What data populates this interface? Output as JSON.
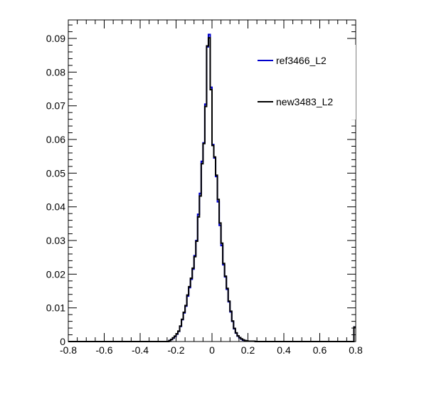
{
  "chart_data": {
    "type": "histogram",
    "title": "",
    "xlabel": "",
    "ylabel": "",
    "xlim": [
      -0.8,
      0.8
    ],
    "ylim": [
      0,
      0.0955
    ],
    "grid": false,
    "legend_placement": "top-right",
    "x_tick_labels": [
      "-0.8",
      "-0.6",
      "-0.4",
      "-0.2",
      "0",
      "0.2",
      "0.4",
      "0.6",
      "0.8"
    ],
    "x_ticks": [
      -0.8,
      -0.6,
      -0.4,
      -0.2,
      0,
      0.2,
      0.4,
      0.6,
      0.8
    ],
    "y_tick_labels": [
      "0",
      "0.01",
      "0.02",
      "0.03",
      "0.04",
      "0.05",
      "0.06",
      "0.07",
      "0.08",
      "0.09"
    ],
    "y_ticks": [
      0,
      0.01,
      0.02,
      0.03,
      0.04,
      0.05,
      0.06,
      0.07,
      0.08,
      0.09
    ],
    "bin_edges_x": [
      -0.24,
      -0.23,
      -0.22,
      -0.21,
      -0.2,
      -0.19,
      -0.18,
      -0.17,
      -0.16,
      -0.15,
      -0.14,
      -0.13,
      -0.12,
      -0.11,
      -0.1,
      -0.09,
      -0.08,
      -0.07,
      -0.06,
      -0.05,
      -0.04,
      -0.03,
      -0.02,
      -0.01,
      0,
      0.01,
      0.02,
      0.03,
      0.04,
      0.05,
      0.06,
      0.07,
      0.08,
      0.09,
      0.1,
      0.11,
      0.12,
      0.13,
      0.14,
      0.15,
      0.16,
      0.17,
      0.18,
      0.19,
      0.2,
      0.21,
      0.22,
      0.23,
      0.24
    ],
    "series": [
      {
        "name": "ref3466_L2",
        "color": "#0000cc",
        "values": [
          0.0003,
          0.0006,
          0.001,
          0.0015,
          0.0022,
          0.003,
          0.0045,
          0.0065,
          0.0085,
          0.0105,
          0.0135,
          0.016,
          0.0185,
          0.0215,
          0.0255,
          0.03,
          0.0378,
          0.044,
          0.0535,
          0.059,
          0.0705,
          0.0875,
          0.0912,
          0.0755,
          0.0585,
          0.0545,
          0.049,
          0.0415,
          0.0345,
          0.0285,
          0.0228,
          0.0192,
          0.0155,
          0.0118,
          0.0088,
          0.006,
          0.0038,
          0.0025,
          0.0016,
          0.0011,
          0.0007,
          0.0004,
          0.0003,
          0.0002,
          0.0001,
          0.0001,
          0.0001,
          0.0001
        ]
      },
      {
        "name": "new3483_L2",
        "color": "#000000",
        "values": [
          0.0003,
          0.0006,
          0.0011,
          0.0016,
          0.0023,
          0.0031,
          0.0046,
          0.0066,
          0.0087,
          0.0107,
          0.0138,
          0.0163,
          0.0188,
          0.0218,
          0.0252,
          0.0298,
          0.037,
          0.0432,
          0.0528,
          0.0588,
          0.0698,
          0.0878,
          0.0902,
          0.0748,
          0.0582,
          0.0548,
          0.0494,
          0.0422,
          0.0352,
          0.0292,
          0.0232,
          0.0194,
          0.0158,
          0.012,
          0.009,
          0.0061,
          0.0039,
          0.0026,
          0.0017,
          0.0012,
          0.0008,
          0.0005,
          0.0003,
          0.0002,
          0.0001,
          0.0001,
          0.0001,
          0.0001
        ]
      }
    ],
    "edge_bin": {
      "x0": 0.79,
      "x1": 0.8,
      "value": 0.0043
    }
  }
}
